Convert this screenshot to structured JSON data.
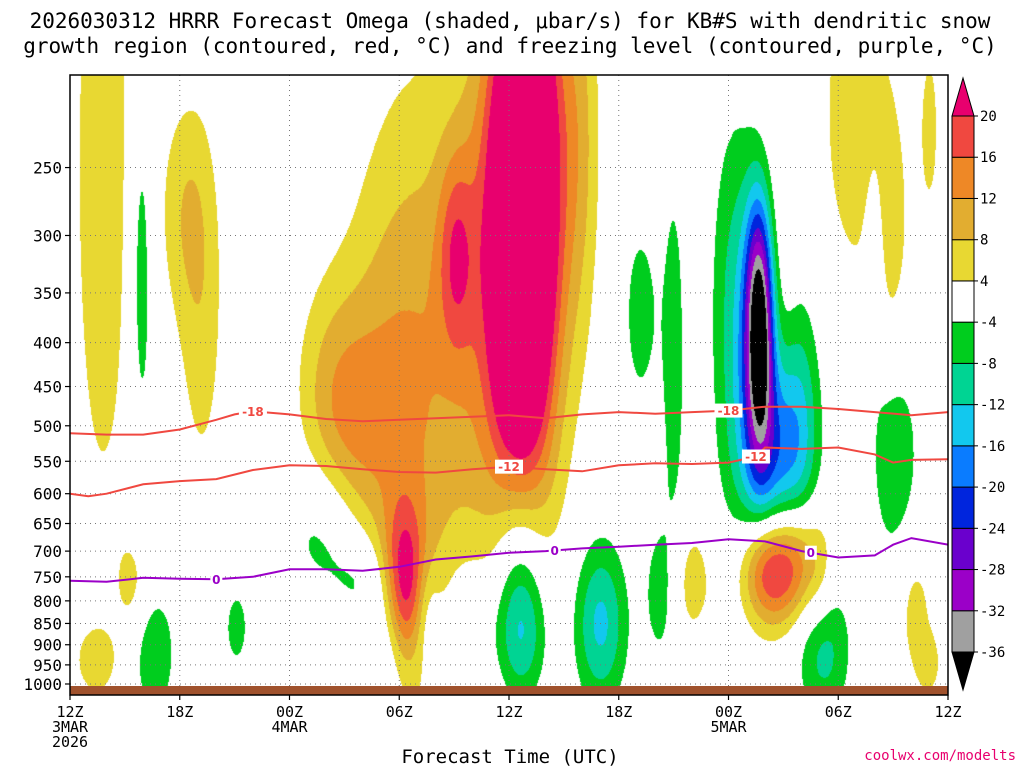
{
  "chart_data": {
    "type": "heatmap",
    "title_line1": "2026030312 HRRR Forecast Omega (shaded, μbar/s) for KB#S with dendritic snow",
    "title_line2": "growth region (contoured, red, °C) and freezing level (contoured, purple, °C)",
    "xlabel": "Forecast Time (UTC)",
    "credit": "coolwx.com/modelts",
    "x_unit": "hours since 2026-03-03 12Z",
    "xlim": [
      0,
      48
    ],
    "x_ticks": [
      {
        "h": 0,
        "lines": [
          "12Z",
          "3MAR",
          "2026"
        ]
      },
      {
        "h": 6,
        "lines": [
          "18Z"
        ]
      },
      {
        "h": 12,
        "lines": [
          "00Z",
          "4MAR"
        ]
      },
      {
        "h": 18,
        "lines": [
          "06Z"
        ]
      },
      {
        "h": 24,
        "lines": [
          "12Z"
        ]
      },
      {
        "h": 30,
        "lines": [
          "18Z"
        ]
      },
      {
        "h": 36,
        "lines": [
          "00Z",
          "5MAR"
        ]
      },
      {
        "h": 42,
        "lines": [
          "06Z"
        ]
      },
      {
        "h": 48,
        "lines": [
          "12Z"
        ]
      }
    ],
    "y_unit": "hPa",
    "ylim": [
      1030,
      195
    ],
    "y_ticks": [
      250,
      300,
      350,
      400,
      450,
      500,
      550,
      600,
      650,
      700,
      750,
      800,
      850,
      900,
      950,
      1000
    ],
    "colorbar": {
      "levels": [
        -36,
        -32,
        -28,
        -24,
        -20,
        -16,
        -12,
        -8,
        -4,
        4,
        8,
        12,
        16,
        20
      ],
      "bins": [
        {
          "lo": -40,
          "hi": -36,
          "color": "#000000"
        },
        {
          "lo": -36,
          "hi": -32,
          "color": "#a0a0a0"
        },
        {
          "lo": -32,
          "hi": -28,
          "color": "#9b00c8"
        },
        {
          "lo": -28,
          "hi": -24,
          "color": "#6a00cd"
        },
        {
          "lo": -24,
          "hi": -20,
          "color": "#0025dd"
        },
        {
          "lo": -20,
          "hi": -16,
          "color": "#0a7cff"
        },
        {
          "lo": -16,
          "hi": -12,
          "color": "#12c8ee"
        },
        {
          "lo": -12,
          "hi": -8,
          "color": "#00d493"
        },
        {
          "lo": -8,
          "hi": -4,
          "color": "#00cd1e"
        },
        {
          "lo": -4,
          "hi": 4,
          "color": "#ffffff"
        },
        {
          "lo": 4,
          "hi": 8,
          "color": "#e8d832"
        },
        {
          "lo": 8,
          "hi": 12,
          "color": "#e2ad30"
        },
        {
          "lo": 12,
          "hi": 16,
          "color": "#ee8826"
        },
        {
          "lo": 16,
          "hi": 20,
          "color": "#f04840"
        },
        {
          "lo": 20,
          "hi": 24,
          "color": "#e8006e"
        }
      ]
    },
    "omega_features": [
      {
        "t": 1.8,
        "p": 250,
        "h": 1.2,
        "s": 180,
        "v": 7
      },
      {
        "t": 1.4,
        "p": 940,
        "h": 0.8,
        "s": 60,
        "v": 6
      },
      {
        "t": 3.5,
        "p": 770,
        "h": 0.7,
        "s": 80,
        "v": 5
      },
      {
        "t": 6.2,
        "p": 280,
        "h": 1.0,
        "s": 60,
        "v": 6
      },
      {
        "t": 7.2,
        "p": 370,
        "h": 0.9,
        "s": 130,
        "v": 6
      },
      {
        "t": 14.0,
        "p": 460,
        "h": 1.3,
        "s": 100,
        "v": 6
      },
      {
        "t": 15.6,
        "p": 500,
        "h": 1.4,
        "s": 120,
        "v": 7
      },
      {
        "t": 17.8,
        "p": 450,
        "h": 2.0,
        "s": 210,
        "v": 8
      },
      {
        "t": 18.3,
        "p": 770,
        "h": 0.8,
        "s": 120,
        "v": 18
      },
      {
        "t": 20.7,
        "p": 420,
        "h": 2.6,
        "s": 260,
        "v": 7
      },
      {
        "t": 21.1,
        "p": 315,
        "h": 0.7,
        "s": 60,
        "v": 11
      },
      {
        "t": 24.0,
        "p": 300,
        "h": 1.6,
        "s": 150,
        "v": 15
      },
      {
        "t": 24.7,
        "p": 330,
        "h": 1.1,
        "s": 190,
        "v": 24
      },
      {
        "t": 25.2,
        "p": 230,
        "h": 1.2,
        "s": 90,
        "v": 12
      },
      {
        "t": 26.1,
        "p": 270,
        "h": 1.2,
        "s": 150,
        "v": 7
      },
      {
        "t": 27.9,
        "p": 230,
        "h": 0.8,
        "s": 90,
        "v": 7
      },
      {
        "t": 34.0,
        "p": 760,
        "h": 0.9,
        "s": 90,
        "v": 6
      },
      {
        "t": 37.5,
        "p": 330,
        "h": 1.1,
        "s": 120,
        "v": 7
      },
      {
        "t": 38.3,
        "p": 735,
        "h": 1.1,
        "s": 80,
        "v": 23
      },
      {
        "t": 39.8,
        "p": 715,
        "h": 0.8,
        "s": 80,
        "v": 10
      },
      {
        "t": 41.0,
        "p": 740,
        "h": 0.6,
        "s": 90,
        "v": 6
      },
      {
        "t": 42.9,
        "p": 215,
        "h": 1.3,
        "s": 70,
        "v": 7
      },
      {
        "t": 44.8,
        "p": 300,
        "h": 0.8,
        "s": 80,
        "v": 6
      },
      {
        "t": 46.2,
        "p": 820,
        "h": 0.7,
        "s": 110,
        "v": 6
      },
      {
        "t": 47.0,
        "p": 225,
        "h": 0.5,
        "s": 50,
        "v": 5
      },
      {
        "t": 47.0,
        "p": 950,
        "h": 0.5,
        "s": 60,
        "v": 5
      },
      {
        "t": 3.9,
        "p": 330,
        "h": 0.45,
        "s": 120,
        "v": -7
      },
      {
        "t": 4.6,
        "p": 920,
        "h": 0.8,
        "s": 110,
        "v": -8
      },
      {
        "t": 9.1,
        "p": 860,
        "h": 0.5,
        "s": 70,
        "v": -6
      },
      {
        "t": 14.0,
        "p": 660,
        "h": 1.6,
        "s": 90,
        "v": -7
      },
      {
        "t": 16.0,
        "p": 760,
        "h": 1.2,
        "s": 70,
        "v": -6
      },
      {
        "t": 17.4,
        "p": 900,
        "h": 1.0,
        "s": 110,
        "v": -7
      },
      {
        "t": 19.5,
        "p": 830,
        "h": 0.5,
        "s": 90,
        "v": -6
      },
      {
        "t": 21.8,
        "p": 860,
        "h": 1.0,
        "s": 110,
        "v": -6
      },
      {
        "t": 24.6,
        "p": 720,
        "h": 1.0,
        "s": 170,
        "v": -15
      },
      {
        "t": 24.7,
        "p": 880,
        "h": 1.0,
        "s": 120,
        "v": -10
      },
      {
        "t": 29.0,
        "p": 850,
        "h": 1.0,
        "s": 130,
        "v": -13
      },
      {
        "t": 32.2,
        "p": 780,
        "h": 0.6,
        "s": 110,
        "v": -6
      },
      {
        "t": 31.2,
        "p": 370,
        "h": 0.7,
        "s": 70,
        "v": -6
      },
      {
        "t": 33.0,
        "p": 420,
        "h": 0.5,
        "s": 170,
        "v": -6
      },
      {
        "t": 36.7,
        "p": 360,
        "h": 1.0,
        "s": 130,
        "v": -15
      },
      {
        "t": 37.7,
        "p": 380,
        "h": 0.55,
        "s": 90,
        "v": -40
      },
      {
        "t": 38.6,
        "p": 540,
        "h": 1.3,
        "s": 110,
        "v": -18
      },
      {
        "t": 40.0,
        "p": 470,
        "h": 0.7,
        "s": 110,
        "v": -6
      },
      {
        "t": 41.2,
        "p": 910,
        "h": 1.0,
        "s": 120,
        "v": -10
      },
      {
        "t": 45.1,
        "p": 540,
        "h": 1.0,
        "s": 120,
        "v": -7
      },
      {
        "t": 44.0,
        "p": 320,
        "h": 0.4,
        "s": 70,
        "v": -6
      }
    ],
    "contours": [
      {
        "name": "-18 C isotherm",
        "color": "#f04840",
        "label": "-18",
        "label_at": [
          10,
          36
        ],
        "points": [
          [
            0,
            510
          ],
          [
            2,
            512
          ],
          [
            4,
            512
          ],
          [
            6,
            505
          ],
          [
            8,
            492
          ],
          [
            9,
            485
          ],
          [
            10,
            481
          ],
          [
            12,
            485
          ],
          [
            14,
            491
          ],
          [
            16,
            494
          ],
          [
            18,
            492
          ],
          [
            20,
            490
          ],
          [
            22,
            488
          ],
          [
            24,
            486
          ],
          [
            26,
            490
          ],
          [
            28,
            485
          ],
          [
            30,
            482
          ],
          [
            32,
            484
          ],
          [
            34,
            482
          ],
          [
            36,
            480
          ],
          [
            38,
            475
          ],
          [
            40,
            475
          ],
          [
            42,
            478
          ],
          [
            44,
            482
          ],
          [
            46,
            486
          ],
          [
            48,
            482
          ]
        ]
      },
      {
        "name": "-12 C isotherm",
        "color": "#f04840",
        "label": "-12",
        "label_at": [
          24,
          37.5
        ],
        "points": [
          [
            0,
            600
          ],
          [
            1,
            604
          ],
          [
            2,
            600
          ],
          [
            4,
            585
          ],
          [
            6,
            580
          ],
          [
            8,
            577
          ],
          [
            10,
            563
          ],
          [
            12,
            556
          ],
          [
            14,
            557
          ],
          [
            16,
            562
          ],
          [
            18,
            566
          ],
          [
            20,
            567
          ],
          [
            22,
            562
          ],
          [
            24,
            558
          ],
          [
            26,
            562
          ],
          [
            28,
            565
          ],
          [
            30,
            556
          ],
          [
            32,
            553
          ],
          [
            34,
            554
          ],
          [
            36,
            552
          ],
          [
            37.5,
            543
          ],
          [
            38,
            530
          ],
          [
            40,
            532
          ],
          [
            42,
            530
          ],
          [
            44,
            540
          ],
          [
            45,
            552
          ],
          [
            46,
            548
          ],
          [
            48,
            547
          ]
        ]
      },
      {
        "name": "0 C freezing level",
        "color": "#9b00c8",
        "label": "0",
        "label_at": [
          8,
          26.5,
          40.5
        ],
        "points": [
          [
            0,
            758
          ],
          [
            2,
            760
          ],
          [
            4,
            752
          ],
          [
            6,
            754
          ],
          [
            8,
            755
          ],
          [
            10,
            750
          ],
          [
            12,
            735
          ],
          [
            14,
            735
          ],
          [
            16,
            738
          ],
          [
            18,
            730
          ],
          [
            20,
            716
          ],
          [
            22,
            710
          ],
          [
            24,
            703
          ],
          [
            26,
            700
          ],
          [
            28,
            695
          ],
          [
            30,
            692
          ],
          [
            32,
            688
          ],
          [
            34,
            685
          ],
          [
            36,
            678
          ],
          [
            38,
            682
          ],
          [
            40,
            700
          ],
          [
            42,
            712
          ],
          [
            44,
            708
          ],
          [
            45,
            688
          ],
          [
            46,
            676
          ],
          [
            48,
            688
          ]
        ]
      }
    ],
    "surface_color": "#a0522d"
  }
}
